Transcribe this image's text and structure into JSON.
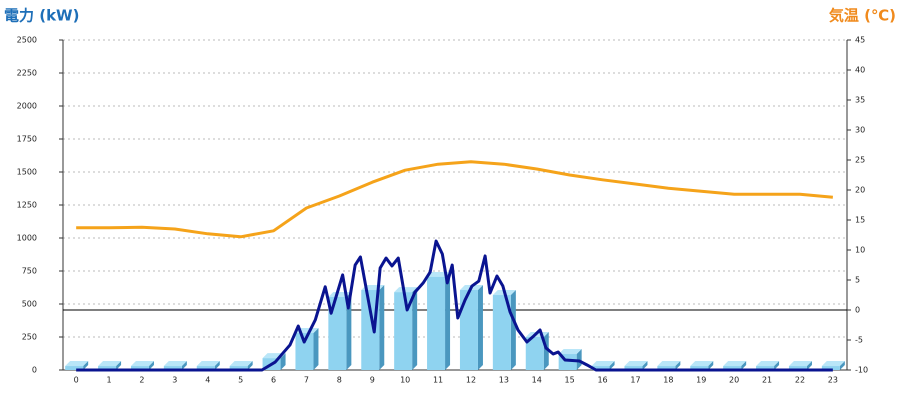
{
  "chart_data": {
    "type": "bar",
    "y_label": "電力 (kW)",
    "y2_label": "気温 (℃)",
    "categories": [
      "0",
      "1",
      "2",
      "3",
      "4",
      "5",
      "6",
      "7",
      "8",
      "9",
      "10",
      "11",
      "12",
      "13",
      "14",
      "15",
      "16",
      "17",
      "18",
      "19",
      "20",
      "21",
      "22",
      "23"
    ],
    "xlim": [
      -0.4,
      23.43
    ],
    "ylim": [
      0,
      2500
    ],
    "yticks": [
      0,
      250,
      500,
      750,
      1000,
      1250,
      1500,
      1750,
      2000,
      2250,
      2500
    ],
    "y2lim": [
      -10,
      45
    ],
    "y2ticks": [
      -10,
      -5,
      0,
      5,
      10,
      15,
      20,
      25,
      30,
      35,
      40,
      45
    ],
    "grid": true,
    "reference_line": {
      "axis": "y2",
      "value": 0
    },
    "series": [
      {
        "type": "bar",
        "color": "#8fd3f0",
        "values": [
          30,
          30,
          30,
          30,
          30,
          30,
          90,
          280,
          553,
          606,
          590,
          705,
          606,
          568,
          250,
          121,
          30,
          30,
          30,
          30,
          30,
          30,
          30,
          30
        ]
      },
      {
        "type": "line",
        "color": "#0a1490",
        "x": [
          0,
          5.65,
          6.05,
          6.5,
          6.75,
          6.93,
          7.27,
          7.57,
          7.75,
          8.1,
          8.27,
          8.48,
          8.64,
          8.88,
          9.06,
          9.24,
          9.42,
          9.6,
          9.79,
          10.06,
          10.3,
          10.55,
          10.76,
          10.94,
          11.13,
          11.28,
          11.43,
          11.6,
          11.82,
          12.03,
          12.24,
          12.43,
          12.58,
          12.79,
          12.97,
          13.19,
          13.43,
          13.7,
          13.91,
          14.1,
          14.28,
          14.5,
          14.65,
          14.86,
          15.3,
          15.53,
          15.8,
          23
        ],
        "values": [
          0,
          0,
          60,
          190,
          333,
          212,
          380,
          630,
          430,
          720,
          470,
          795,
          856,
          530,
          288,
          773,
          848,
          788,
          848,
          455,
          590,
          660,
          742,
          977,
          879,
          660,
          795,
          394,
          530,
          636,
          674,
          864,
          583,
          712,
          636,
          439,
          303,
          212,
          258,
          303,
          167,
          121,
          136,
          76,
          68,
          38,
          0,
          0
        ]
      },
      {
        "type": "line",
        "axis": "y2",
        "color": "#f5a31a",
        "values": [
          13.7,
          13.7,
          13.8,
          13.5,
          12.7,
          12.2,
          13.2,
          17,
          19,
          21.3,
          23.3,
          24.3,
          24.7,
          24.3,
          23.5,
          22.5,
          21.7,
          21,
          20.3,
          19.8,
          19.3,
          19.3,
          19.3,
          18.8
        ]
      }
    ]
  }
}
